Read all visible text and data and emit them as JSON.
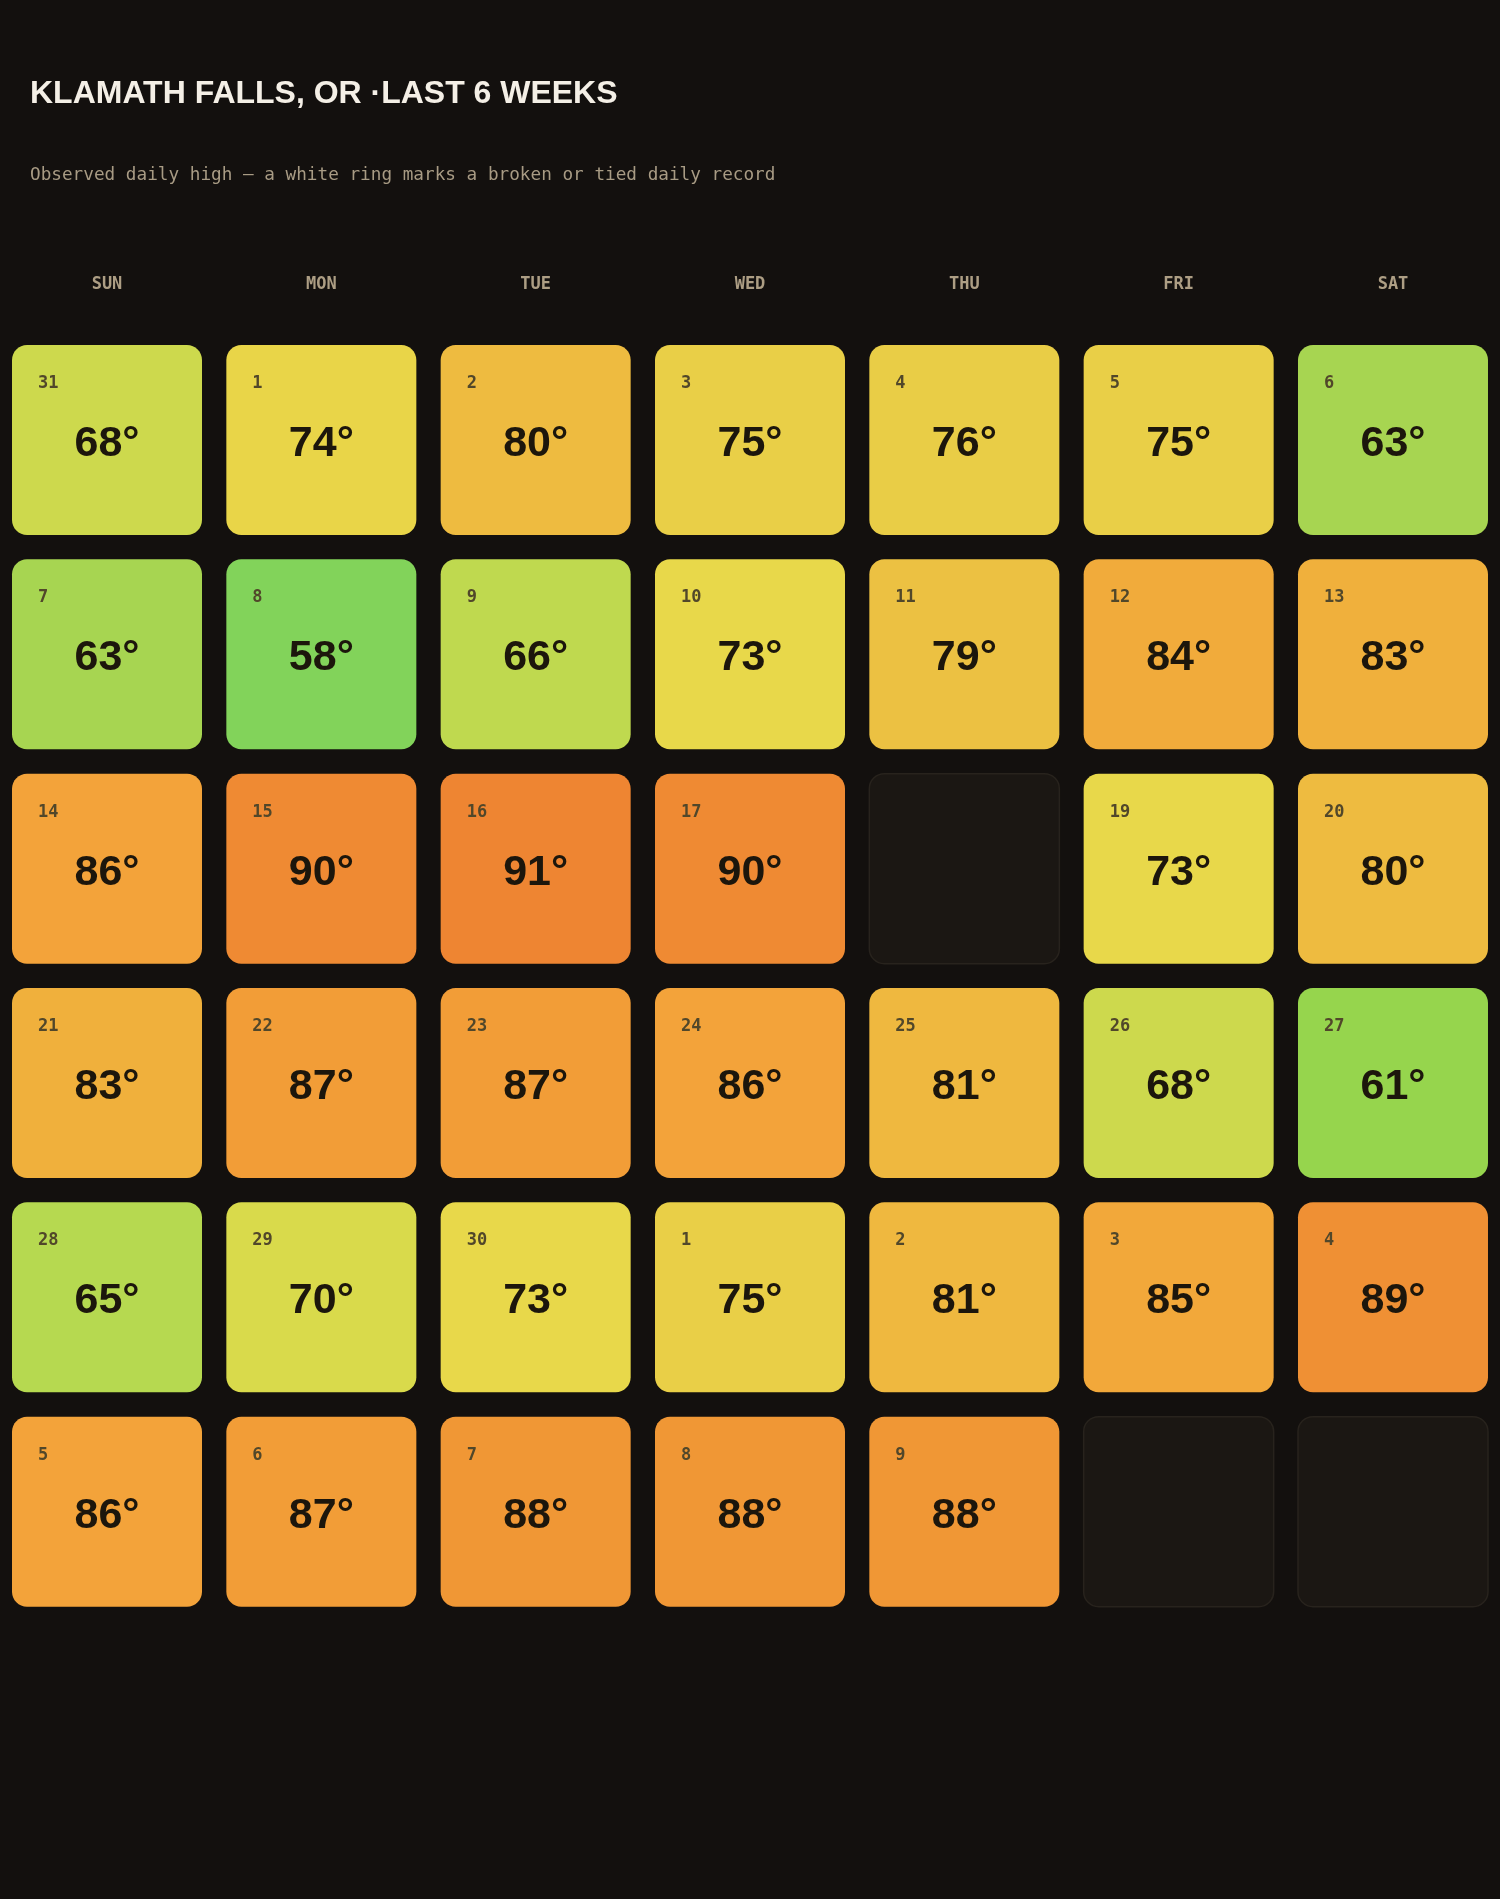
{
  "chart_data": {
    "type": "heatmap",
    "title": "KLAMATH FALLS, OR ·LAST 6 WEEKS",
    "subtitle": "Observed daily high — a white ring marks a broken or tied daily record",
    "categories": [
      "SUN",
      "MON",
      "TUE",
      "WED",
      "THU",
      "FRI",
      "SAT"
    ],
    "y_categories": [
      null,
      null,
      null,
      null,
      null,
      null
    ],
    "cells": [
      [
        68,
        74,
        80,
        75,
        76,
        75,
        63
      ],
      [
        63,
        58,
        66,
        73,
        79,
        84,
        83
      ],
      [
        86,
        90,
        91,
        90,
        null,
        73,
        80
      ],
      [
        83,
        87,
        87,
        86,
        81,
        68,
        61
      ],
      [
        65,
        70,
        73,
        75,
        81,
        85,
        89
      ],
      [
        86,
        87,
        88,
        88,
        88,
        null,
        null
      ]
    ],
    "cell_labels": [
      [
        "68°",
        "74°",
        "80°",
        "75°",
        "76°",
        "75°",
        "63°"
      ],
      [
        "63°",
        "58°",
        "66°",
        "73°",
        "79°",
        "84°",
        "83°"
      ],
      [
        "86°",
        "90°",
        "91°",
        "90°",
        null,
        "73°",
        "80°"
      ],
      [
        "83°",
        "87°",
        "87°",
        "86°",
        "81°",
        "68°",
        "61°"
      ],
      [
        "65°",
        "70°",
        "73°",
        "75°",
        "81°",
        "85°",
        "89°"
      ],
      [
        "86°",
        "87°",
        "88°",
        "88°",
        "88°",
        null,
        null
      ]
    ],
    "annotations": [
      "31",
      "1",
      "2",
      "3",
      "4",
      "5",
      "6",
      "7",
      "8",
      "9",
      "10",
      "11",
      "12",
      "13",
      "14",
      "15",
      "16",
      "17",
      "19",
      "20",
      "21",
      "22",
      "23",
      "24",
      "25",
      "26",
      "27",
      "28",
      "29",
      "30",
      "1",
      "2",
      "3",
      "4",
      "5",
      "6",
      "7",
      "8",
      "9"
    ],
    "colors": [
      [
        "#cdd94d",
        "#e9d548",
        "#eebb40",
        "#e9cf47",
        "#e9cd46",
        "#e9cf47",
        "#a7d551"
      ],
      [
        "#a7d551",
        "#82d35a",
        "#bfd94f",
        "#e8d84a",
        "#ecc142",
        "#f1ab3b",
        "#f0b03c"
      ],
      [
        "#f3a33a",
        "#ef8a33",
        "#ee8532",
        "#ef8a33",
        null,
        "#e8d84a",
        "#eebb40"
      ],
      [
        "#f0b03c",
        "#f29d37",
        "#f29d37",
        "#f3a33a",
        "#efb83f",
        "#cdd94d",
        "#96d54d"
      ],
      [
        "#b6d950",
        "#d9da4b",
        "#e8d84a",
        "#e9cf47",
        "#efb83f",
        "#f2a83a",
        "#ef9034"
      ],
      [
        "#f3a33a",
        "#f29d37",
        "#f09735",
        "#f09735",
        "#f09735",
        null,
        null
      ]
    ]
  }
}
